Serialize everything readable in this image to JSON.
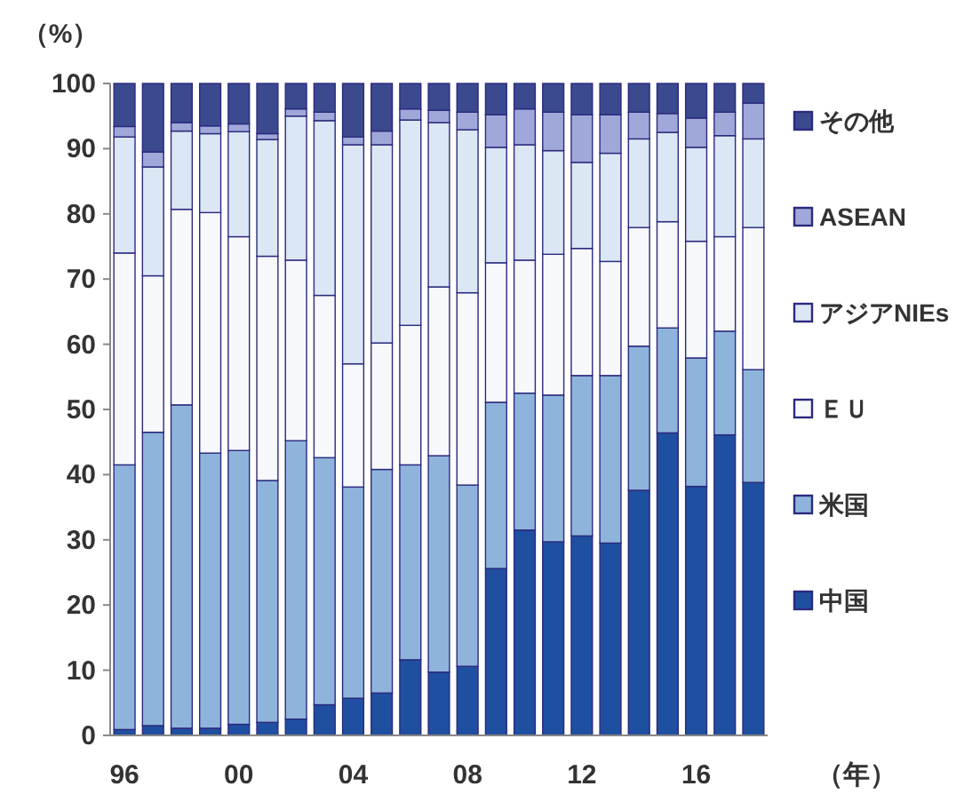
{
  "chart_data": {
    "type": "bar",
    "stacked": true,
    "ylabel": "（%）",
    "xlabel": "（年）",
    "categories": [
      "96",
      null,
      null,
      null,
      "00",
      null,
      null,
      null,
      "04",
      null,
      null,
      null,
      "08",
      null,
      null,
      null,
      "12",
      null,
      null,
      null,
      "16",
      null,
      null
    ],
    "ylim": [
      0,
      100
    ],
    "yticks": [
      0,
      10,
      20,
      30,
      40,
      50,
      60,
      70,
      80,
      90,
      100
    ],
    "grid": false,
    "legend": "right",
    "series": [
      {
        "name": "中国",
        "color": "#1f4fa0",
        "values": [
          0.9,
          1.5,
          1.1,
          1.1,
          1.7,
          2.0,
          2.5,
          4.7,
          5.7,
          6.5,
          11.6,
          9.7,
          10.6,
          25.6,
          31.5,
          29.7,
          30.6,
          29.5,
          37.6,
          46.4,
          38.2,
          46.1,
          38.8
        ]
      },
      {
        "name": "米国",
        "color": "#8fb4dc",
        "values": [
          40.6,
          45.0,
          49.6,
          42.2,
          42.0,
          37.1,
          42.7,
          37.9,
          32.4,
          34.3,
          29.9,
          33.2,
          27.8,
          25.5,
          21.0,
          22.5,
          24.6,
          25.7,
          22.1,
          16.1,
          19.7,
          15.9,
          17.3
        ]
      },
      {
        "name": "ＥＵ",
        "color": "#f6f8fc",
        "values": [
          32.5,
          24.0,
          30.0,
          36.9,
          32.8,
          34.4,
          27.7,
          24.9,
          18.9,
          19.4,
          21.4,
          25.9,
          29.5,
          21.4,
          20.4,
          21.6,
          19.5,
          17.5,
          18.2,
          16.3,
          17.9,
          14.5,
          21.8
        ]
      },
      {
        "name": "アジアNIEs",
        "color": "#dce7f5",
        "values": [
          17.8,
          16.7,
          12.0,
          12.1,
          16.1,
          17.9,
          22.1,
          26.8,
          33.6,
          30.4,
          31.5,
          25.2,
          25.0,
          17.7,
          17.7,
          15.9,
          13.2,
          16.6,
          13.6,
          13.7,
          14.4,
          15.5,
          13.6
        ]
      },
      {
        "name": "ASEAN",
        "color": "#9fa8d8",
        "values": [
          1.6,
          2.3,
          1.3,
          1.2,
          1.2,
          0.9,
          1.1,
          1.3,
          1.2,
          2.1,
          1.7,
          1.9,
          2.7,
          5.0,
          5.5,
          5.9,
          7.3,
          5.9,
          4.1,
          2.9,
          4.5,
          3.6,
          5.5
        ]
      },
      {
        "name": "その他",
        "color": "#3b4a8f",
        "values": [
          6.6,
          10.5,
          6.0,
          6.5,
          6.2,
          7.7,
          3.9,
          4.4,
          8.2,
          7.3,
          3.9,
          4.1,
          4.4,
          4.8,
          3.9,
          4.4,
          4.8,
          4.8,
          4.4,
          4.6,
          5.3,
          4.4,
          3.0
        ]
      }
    ]
  }
}
